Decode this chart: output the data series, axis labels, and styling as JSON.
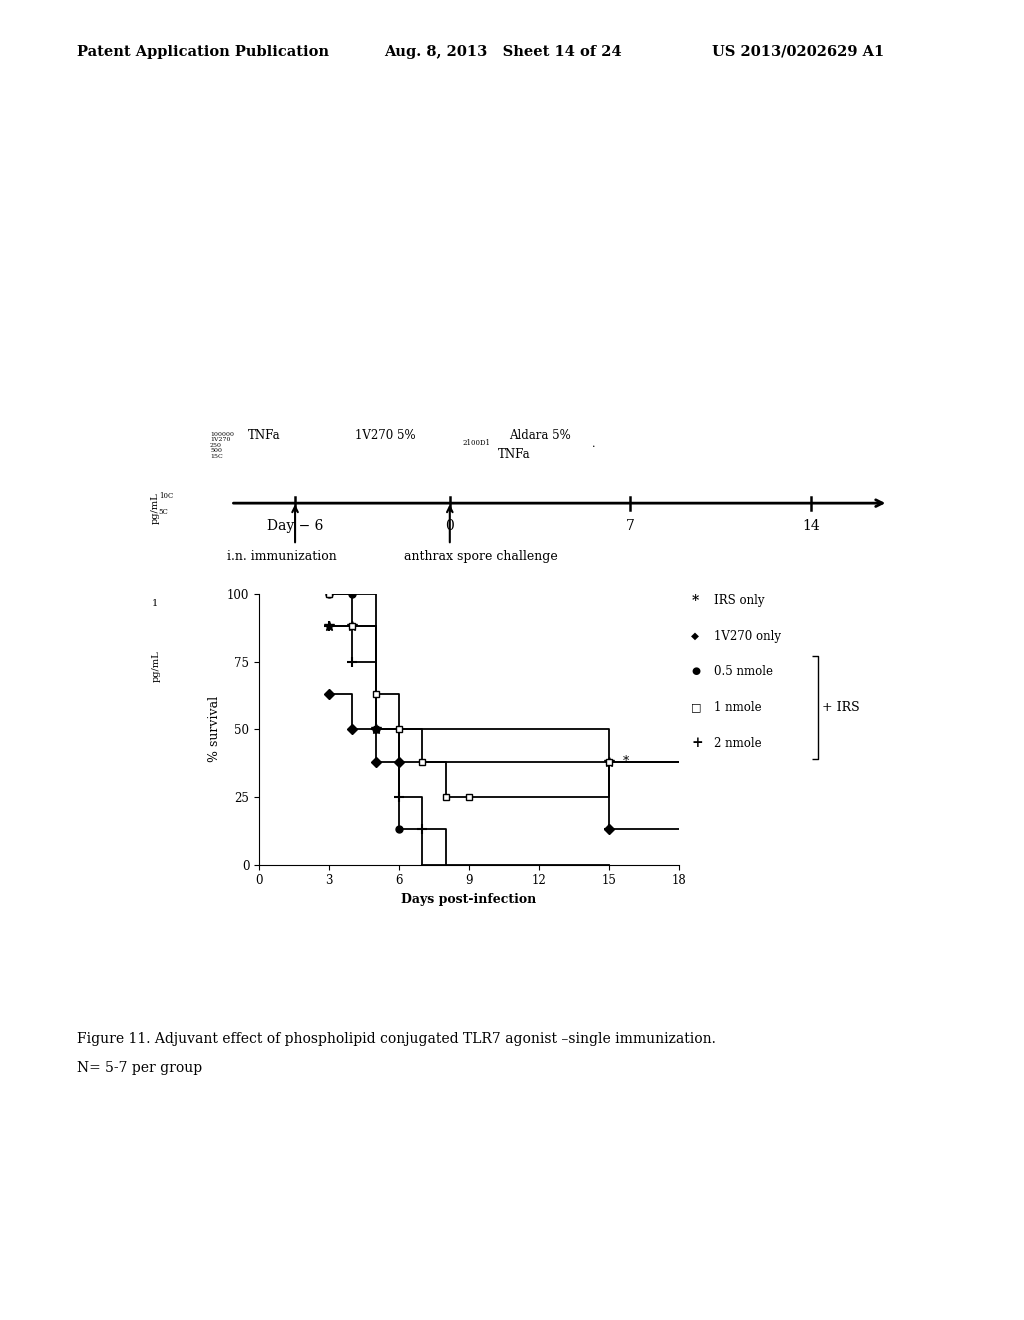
{
  "header_left": "Patent Application Publication",
  "header_mid": "Aug. 8, 2013   Sheet 14 of 24",
  "header_right": "US 2013/0202629 A1",
  "figure_caption": "Figure 11. Adjuvant effect of phospholipid conjugated TLR7 agonist –single immunization.",
  "figure_caption2": "N= 5-7 per group",
  "bg_color": "#ffffff",
  "text_color": "#000000",
  "survival_xlabel": "Days post-infection",
  "survival_ylabel": "% survival"
}
